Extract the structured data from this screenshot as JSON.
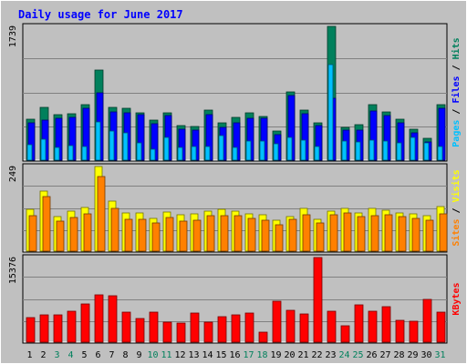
{
  "title": "Daily usage for June 2017",
  "colors": {
    "background": "#c0c0c0",
    "title": "#0000ff",
    "hits": "#00805c",
    "files": "#0000ff",
    "pages": "#00c0ff",
    "visits": "#ffff00",
    "sites": "#ff8000",
    "kbytes": "#ff0000",
    "weekend_day": "#00805c",
    "weekday": "#000000"
  },
  "chart_data": [
    {
      "type": "bar",
      "panel": "hits-files-pages",
      "ylabel": [
        "Pages",
        "Files",
        "Hits"
      ],
      "ymax_label": "1739",
      "ylim": [
        0,
        1739
      ],
      "categories": [
        "1",
        "2",
        "3",
        "4",
        "5",
        "6",
        "7",
        "8",
        "9",
        "10",
        "11",
        "12",
        "13",
        "14",
        "15",
        "16",
        "17",
        "18",
        "19",
        "20",
        "21",
        "22",
        "23",
        "24",
        "25",
        "26",
        "27",
        "28",
        "29",
        "30",
        "31"
      ],
      "series": [
        {
          "name": "Hits",
          "values": [
            530,
            690,
            590,
            600,
            720,
            1170,
            690,
            670,
            620,
            520,
            610,
            450,
            440,
            650,
            490,
            560,
            610,
            570,
            380,
            890,
            650,
            490,
            1739,
            420,
            460,
            720,
            630,
            530,
            400,
            280,
            720
          ]
        },
        {
          "name": "Files",
          "values": [
            480,
            520,
            550,
            560,
            670,
            870,
            630,
            610,
            590,
            470,
            580,
            400,
            390,
            590,
            420,
            490,
            540,
            540,
            330,
            840,
            600,
            450,
            810,
            390,
            390,
            640,
            580,
            480,
            350,
            240,
            680
          ]
        },
        {
          "name": "Pages",
          "values": [
            200,
            270,
            170,
            190,
            180,
            500,
            380,
            350,
            230,
            140,
            290,
            160,
            180,
            180,
            320,
            170,
            250,
            250,
            210,
            300,
            260,
            180,
            1240,
            250,
            240,
            260,
            250,
            230,
            300,
            230,
            180
          ]
        }
      ]
    },
    {
      "type": "bar",
      "panel": "visits-sites",
      "ylabel": [
        "Sites",
        "Visits"
      ],
      "ymax_label": "249",
      "ylim": [
        0,
        249
      ],
      "categories": [
        "1",
        "2",
        "3",
        "4",
        "5",
        "6",
        "7",
        "8",
        "9",
        "10",
        "11",
        "12",
        "13",
        "14",
        "15",
        "16",
        "17",
        "18",
        "19",
        "20",
        "21",
        "22",
        "23",
        "24",
        "25",
        "26",
        "27",
        "28",
        "29",
        "30",
        "31"
      ],
      "series": [
        {
          "name": "Visits",
          "values": [
            122,
            178,
            101,
            117,
            129,
            249,
            148,
            113,
            113,
            97,
            115,
            107,
            110,
            118,
            122,
            119,
            111,
            106,
            91,
            102,
            125,
            94,
            117,
            126,
            113,
            125,
            121,
            113,
            109,
            104,
            130
          ]
        },
        {
          "name": "Sites",
          "values": [
            104,
            160,
            89,
            99,
            110,
            219,
            126,
            95,
            93,
            83,
            99,
            89,
            92,
            104,
            105,
            105,
            97,
            91,
            78,
            93,
            107,
            84,
            108,
            112,
            103,
            105,
            107,
            103,
            96,
            92,
            109
          ]
        }
      ]
    },
    {
      "type": "bar",
      "panel": "kbytes",
      "ylabel": [
        "KBytes"
      ],
      "ymax_label": "15376",
      "ylim": [
        0,
        15376
      ],
      "categories": [
        "1",
        "2",
        "3",
        "4",
        "5",
        "6",
        "7",
        "8",
        "9",
        "10",
        "11",
        "12",
        "13",
        "14",
        "15",
        "16",
        "17",
        "18",
        "19",
        "20",
        "21",
        "22",
        "23",
        "24",
        "25",
        "26",
        "27",
        "28",
        "29",
        "30",
        "31"
      ],
      "series": [
        {
          "name": "KBytes",
          "values": [
            4410,
            4880,
            5040,
            5620,
            6960,
            8590,
            8400,
            5510,
            4240,
            5520,
            3630,
            3410,
            5240,
            3630,
            4580,
            4910,
            5240,
            1860,
            7430,
            5830,
            5160,
            15376,
            5560,
            3020,
            6840,
            5570,
            6380,
            3910,
            3850,
            7840,
            5530
          ]
        }
      ]
    }
  ],
  "weekend_days": [
    3,
    4,
    10,
    11,
    17,
    18,
    24,
    25,
    31
  ]
}
